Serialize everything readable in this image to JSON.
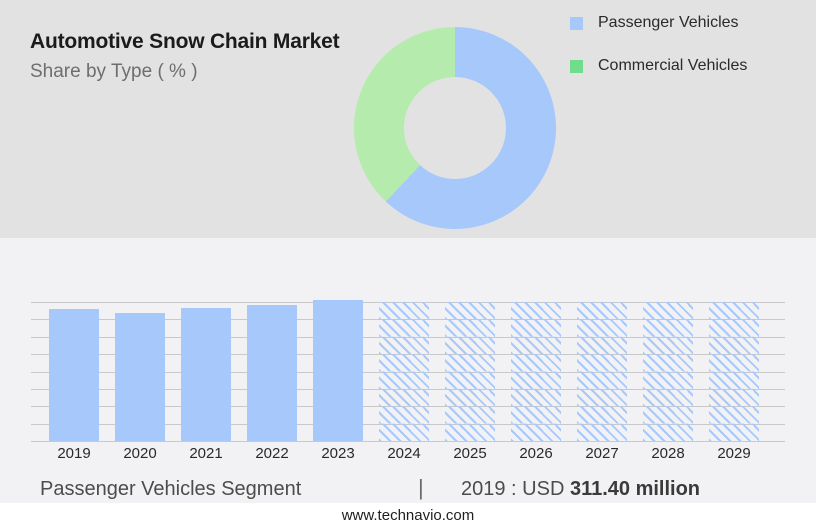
{
  "header": {
    "title": "Automotive Snow Chain Market",
    "subtitle": "Share by Type ( % )"
  },
  "legend": {
    "position": "right",
    "items": [
      {
        "label": "Passenger Vehicles",
        "color": "#A6C8FB"
      },
      {
        "label": "Commercial Vehicles",
        "color": "#6FDD8C"
      }
    ]
  },
  "caption": {
    "segment_label": "Passenger Vehicles Segment",
    "divider": "|",
    "value_prefix": "2019 : USD",
    "value_amount": "311.40 million"
  },
  "footer": {
    "website": "www.technavio.com"
  },
  "colors": {
    "top_bg": "#E2E2E2",
    "bottom_bg": "#F2F2F4",
    "bar_blue": "#A6C8FB",
    "donut_blue": "#A6C8FB",
    "donut_green": "#B5ECAE",
    "legend_green": "#6FDD8C",
    "gridline": "#C9C9CA",
    "footer_bg": "#FFFFFF"
  },
  "chart_data": [
    {
      "type": "pie",
      "subtype": "donut",
      "title": "Automotive Snow Chain Market — Share by Type ( % )",
      "labels": [
        "Passenger Vehicles",
        "Commercial Vehicles"
      ],
      "values": [
        62,
        38
      ],
      "colors": [
        "#A6C8FB",
        "#B5ECAE"
      ],
      "start_angle_deg": 0,
      "direction": "clockwise",
      "hole_ratio": 0.5,
      "legend_position": "right"
    },
    {
      "type": "bar",
      "categories": [
        "2019",
        "2020",
        "2021",
        "2022",
        "2023",
        "2024",
        "2025",
        "2026",
        "2027",
        "2028",
        "2029"
      ],
      "values": [
        95,
        92,
        95.5,
        98,
        101.8,
        100,
        100,
        100,
        100,
        100,
        100
      ],
      "bar_styles": [
        "solid",
        "solid",
        "solid",
        "solid",
        "solid",
        "hatched",
        "hatched",
        "hatched",
        "hatched",
        "hatched",
        "hatched"
      ],
      "value_note": "relative bar heights in % of plot height; chart shows no y-axis tick labels",
      "annotation": "Passenger Vehicles Segment | 2019 : USD 311.40 million",
      "xlabel": "",
      "ylabel": "",
      "grid": "horizontal",
      "ylim": [
        0,
        100
      ]
    }
  ]
}
